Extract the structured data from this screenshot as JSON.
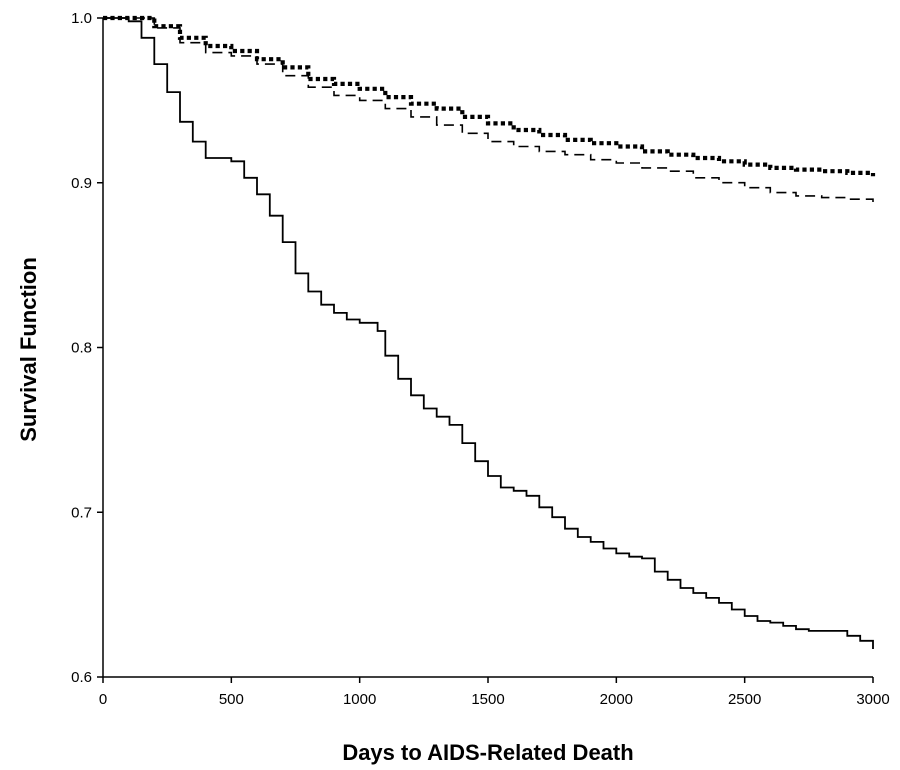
{
  "chart_data": {
    "type": "line",
    "title": "",
    "xlabel": "Days to AIDS-Related Death",
    "ylabel": "Survival Function",
    "xlim": [
      0,
      3000
    ],
    "ylim": [
      0.6,
      1.0
    ],
    "x_ticks": [
      0,
      500,
      1000,
      1500,
      2000,
      2500,
      3000
    ],
    "x_tick_labels": [
      "0",
      "500",
      "1000",
      "1500",
      "2000",
      "2500",
      "3000"
    ],
    "y_ticks": [
      0.6,
      0.7,
      0.8,
      0.9,
      1.0
    ],
    "y_tick_labels": [
      "0.6",
      "0.7",
      "0.8",
      "0.9",
      "1.0"
    ],
    "grid": false,
    "legend": "none",
    "series": [
      {
        "line_style": "dotted",
        "color": "#000000",
        "x": [
          0,
          130,
          200,
          300,
          400,
          500,
          600,
          700,
          800,
          900,
          1000,
          1100,
          1200,
          1300,
          1400,
          1500,
          1600,
          1700,
          1800,
          1900,
          2000,
          2100,
          2200,
          2300,
          2400,
          2500,
          2600,
          2700,
          2800,
          2900,
          3000
        ],
        "y": [
          1.0,
          1.0,
          0.995,
          0.988,
          0.983,
          0.98,
          0.975,
          0.97,
          0.963,
          0.96,
          0.957,
          0.952,
          0.948,
          0.945,
          0.94,
          0.936,
          0.932,
          0.929,
          0.926,
          0.924,
          0.922,
          0.919,
          0.917,
          0.915,
          0.913,
          0.911,
          0.909,
          0.908,
          0.907,
          0.906,
          0.904
        ]
      },
      {
        "line_style": "dashed",
        "color": "#000000",
        "x": [
          0,
          130,
          200,
          300,
          400,
          500,
          600,
          700,
          800,
          900,
          1000,
          1100,
          1200,
          1300,
          1400,
          1500,
          1600,
          1700,
          1800,
          1900,
          2000,
          2100,
          2200,
          2300,
          2400,
          2500,
          2600,
          2700,
          2800,
          2900,
          3000
        ],
        "y": [
          1.0,
          1.0,
          0.994,
          0.985,
          0.979,
          0.977,
          0.972,
          0.965,
          0.958,
          0.953,
          0.95,
          0.945,
          0.94,
          0.935,
          0.93,
          0.925,
          0.922,
          0.919,
          0.917,
          0.914,
          0.912,
          0.909,
          0.907,
          0.903,
          0.9,
          0.897,
          0.894,
          0.892,
          0.891,
          0.89,
          0.886
        ]
      },
      {
        "line_style": "solid",
        "color": "#000000",
        "x": [
          0,
          100,
          150,
          200,
          250,
          300,
          350,
          400,
          500,
          550,
          600,
          650,
          700,
          750,
          800,
          850,
          900,
          950,
          1000,
          1070,
          1100,
          1150,
          1200,
          1250,
          1300,
          1350,
          1400,
          1450,
          1500,
          1550,
          1600,
          1650,
          1700,
          1750,
          1800,
          1850,
          1900,
          1950,
          2000,
          2050,
          2100,
          2150,
          2200,
          2250,
          2300,
          2350,
          2400,
          2450,
          2500,
          2550,
          2600,
          2650,
          2700,
          2750,
          2800,
          2850,
          2900,
          2950,
          3000
        ],
        "y": [
          1.0,
          0.998,
          0.988,
          0.972,
          0.955,
          0.937,
          0.925,
          0.915,
          0.913,
          0.903,
          0.893,
          0.88,
          0.864,
          0.845,
          0.834,
          0.826,
          0.821,
          0.817,
          0.815,
          0.81,
          0.795,
          0.781,
          0.771,
          0.763,
          0.758,
          0.753,
          0.742,
          0.731,
          0.722,
          0.715,
          0.713,
          0.71,
          0.703,
          0.697,
          0.69,
          0.685,
          0.682,
          0.678,
          0.675,
          0.673,
          0.672,
          0.664,
          0.659,
          0.654,
          0.651,
          0.648,
          0.645,
          0.641,
          0.637,
          0.634,
          0.633,
          0.631,
          0.629,
          0.628,
          0.628,
          0.628,
          0.625,
          0.622,
          0.617
        ]
      }
    ]
  }
}
